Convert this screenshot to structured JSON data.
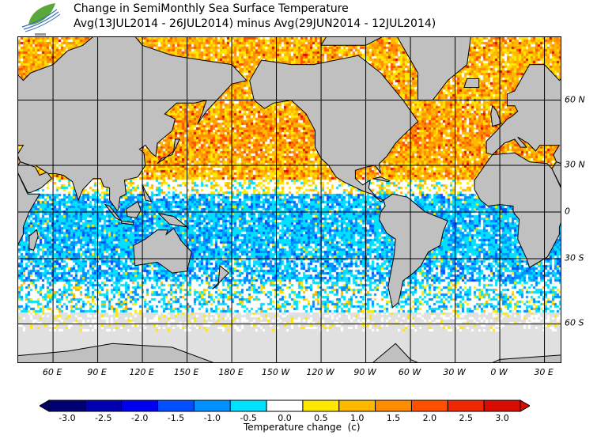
{
  "header": {
    "title": "Change in SemiMonthly Sea Surface Temperature",
    "subtitle": "Avg(13JUL2014 - 26JUL2014) minus Avg(29JUN2014 - 12JUL2014)",
    "logo_icon": "leaf-wave-logo"
  },
  "map": {
    "lon_labels": [
      "60 E",
      "90 E",
      "120 E",
      "150 E",
      "180 E",
      "150 W",
      "120 W",
      "90 W",
      "60 W",
      "30 W",
      "0 W",
      "30 E"
    ],
    "lat_labels": [
      "60 N",
      "30 N",
      "0",
      "30 S",
      "60 S"
    ],
    "land_color": "#c0c0c0",
    "ice_color": "#e0e0e0"
  },
  "colorbar": {
    "title": "Temperature change  (c)",
    "labels": [
      "-3.0",
      "-2.5",
      "-2.0",
      "-1.5",
      "-1.0",
      "-0.5",
      "0.0",
      "0.5",
      "1.0",
      "1.5",
      "2.0",
      "2.5",
      "3.0"
    ],
    "colors": [
      "#000070",
      "#0000b0",
      "#0000f0",
      "#0050ff",
      "#0090ff",
      "#00e0ff",
      "#ffffff",
      "#ffe800",
      "#ffb800",
      "#ff8c00",
      "#ff5000",
      "#f02800",
      "#d80c00"
    ]
  }
}
